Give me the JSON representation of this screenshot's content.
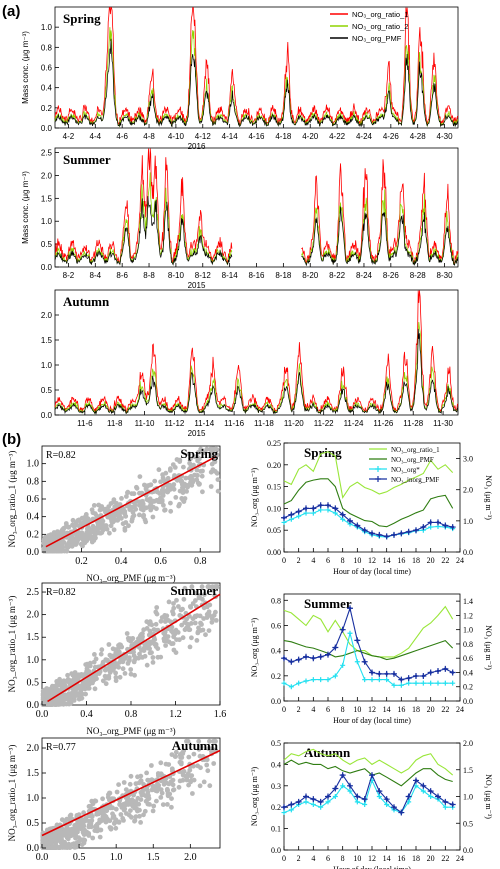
{
  "panel_a_label": "(a)",
  "panel_b_label": "(b)",
  "colors": {
    "ratio1": "#ff0000",
    "ratio2": "#8fd400",
    "pmf": "#000000",
    "scatter": "#b8b8b8",
    "fit": "#e00000",
    "d_ratio1": "#99e639",
    "d_pmf": "#2f7d12",
    "d_star": "#22e0f0",
    "d_inorg": "#1830a0"
  },
  "chart_data": [
    {
      "type": "line",
      "id": "ts_spring",
      "title": "Spring",
      "year": "2016",
      "ylabel": "Mass conc. (μg m⁻³)",
      "ylim": [
        0,
        1.2
      ],
      "yticks": [
        0.0,
        0.2,
        0.4,
        0.6,
        0.8,
        1.0
      ],
      "xticks": [
        "4-2",
        "4-4",
        "4-6",
        "4-8",
        "4-10",
        "4-12",
        "4-14",
        "4-16",
        "4-18",
        "4-20",
        "4-22",
        "4-24",
        "4-26",
        "4-28",
        "4-30"
      ],
      "x_days": [
        1,
        31
      ],
      "baseline": 0.15,
      "peaks": [
        [
          5.2,
          1.1
        ],
        [
          4.9,
          0.6
        ],
        [
          8.2,
          0.4
        ],
        [
          11.2,
          0.75
        ],
        [
          11.4,
          0.65
        ],
        [
          12.3,
          0.45
        ],
        [
          14.2,
          0.35
        ],
        [
          18.3,
          0.55
        ],
        [
          25.8,
          0.5
        ],
        [
          27.2,
          0.98
        ],
        [
          28.2,
          0.85
        ],
        [
          29.2,
          0.55
        ]
      ],
      "legend": [
        "NO₃_org_ratio_1",
        "NO₃_org_ratio_2",
        "NO₃_org_PMF"
      ]
    },
    {
      "type": "line",
      "id": "ts_summer",
      "title": "Summer",
      "year": "2015",
      "ylabel": "Mass conc. (μg m⁻³)",
      "ylim": [
        0,
        2.6
      ],
      "yticks": [
        0.0,
        0.5,
        1.0,
        1.5,
        2.0,
        2.5
      ],
      "xticks": [
        "8-2",
        "8-4",
        "8-6",
        "8-8",
        "8-10",
        "8-12",
        "8-14",
        "8-16",
        "8-18",
        "8-20",
        "8-22",
        "8-24",
        "8-26",
        "8-28",
        "8-30"
      ],
      "x_days": [
        1,
        31
      ],
      "baseline": 0.4,
      "gap": [
        14.2,
        19.3
      ],
      "peaks": [
        [
          6.3,
          1.1
        ],
        [
          7.5,
          1.8
        ],
        [
          8.0,
          2.45
        ],
        [
          8.5,
          2.0
        ],
        [
          9.3,
          1.6
        ],
        [
          10.5,
          1.3
        ],
        [
          11.8,
          1.0
        ],
        [
          20.5,
          1.6
        ],
        [
          22.3,
          1.7
        ],
        [
          24.1,
          1.75
        ],
        [
          25.5,
          1.95
        ],
        [
          26.8,
          1.9
        ],
        [
          28.5,
          1.5
        ],
        [
          30.2,
          1.0
        ]
      ],
      "legend": []
    },
    {
      "type": "line",
      "id": "ts_autumn",
      "title": "Autumn",
      "year": "2015",
      "ylabel": "",
      "ylim": [
        0,
        2.5
      ],
      "yticks": [
        0.0,
        0.5,
        1.0,
        1.5,
        2.0
      ],
      "xticks": [
        "11-6",
        "11-8",
        "11-10",
        "11-12",
        "11-14",
        "11-16",
        "11-18",
        "11-20",
        "11-22",
        "11-24",
        "11-26",
        "11-28",
        "11-30"
      ],
      "x_days": [
        4,
        31
      ],
      "baseline": 0.25,
      "peaks": [
        [
          9.8,
          0.8
        ],
        [
          10.6,
          1.15
        ],
        [
          13.2,
          1.05
        ],
        [
          14.6,
          0.85
        ],
        [
          16.3,
          0.6
        ],
        [
          19.5,
          0.8
        ],
        [
          20.4,
          1.05
        ],
        [
          23.3,
          0.6
        ],
        [
          26.3,
          0.75
        ],
        [
          27.5,
          1.0
        ],
        [
          28.4,
          2.35
        ],
        [
          29.3,
          1.0
        ],
        [
          30.4,
          0.6
        ]
      ],
      "legend": []
    },
    {
      "type": "scatter",
      "id": "sc_spring",
      "title": "Spring",
      "r_label": "R=0.82",
      "xlabel": "NO₃_org_PMF (μg m⁻³)",
      "ylabel": "NO₃_org_ratio_1 (μg m⁻³)",
      "xlim": [
        0,
        0.9
      ],
      "ylim": [
        0,
        1.2
      ],
      "xticks": [
        0.2,
        0.4,
        0.6,
        0.8
      ],
      "yticks": [
        0.0,
        0.2,
        0.4,
        0.6,
        0.8,
        1.0
      ],
      "fit": [
        [
          0.02,
          0.06
        ],
        [
          0.88,
          1.08
        ]
      ],
      "slope": 1.18,
      "noise": 0.15
    },
    {
      "type": "scatter",
      "id": "sc_summer",
      "title": "Summer",
      "r_label": "R=0.82",
      "xlabel": "NO₃_org_PMF (μg m⁻³)",
      "ylabel": "NO₃_org_ratio_1 (μg m⁻³)",
      "xlim": [
        0,
        1.6
      ],
      "ylim": [
        0,
        2.7
      ],
      "xticks": [
        0.0,
        0.4,
        0.8,
        1.2,
        1.6
      ],
      "yticks": [
        0.0,
        0.5,
        1.0,
        1.5,
        2.0,
        2.5
      ],
      "fit": [
        [
          0.05,
          0.08
        ],
        [
          1.6,
          2.45
        ]
      ],
      "slope": 1.5,
      "noise": 0.3
    },
    {
      "type": "scatter",
      "id": "sc_autumn",
      "title": "Autumn",
      "r_label": "R=0.77",
      "xlabel": "NO₃_org_PMF (μg m⁻³)",
      "ylabel": "NO₃_org_ratio_1 (μg m⁻³)",
      "xlim": [
        0,
        2.4
      ],
      "ylim": [
        0,
        2.2
      ],
      "xticks": [
        0.0,
        0.5,
        1.0,
        1.5,
        2.0
      ],
      "yticks": [
        0.0,
        0.5,
        1.0,
        1.5,
        2.0
      ],
      "fit": [
        [
          0.0,
          0.25
        ],
        [
          2.4,
          1.95
        ]
      ],
      "slope": 0.8,
      "noise": 0.3
    },
    {
      "type": "line",
      "id": "di_spring",
      "title": "Spring",
      "xlabel": "Hour of day (local time)",
      "ylabel_left": "NO₃_org (μg m⁻³)",
      "ylabel_right": "NO₃ (μg m⁻³)",
      "xticks": [
        0,
        2,
        4,
        6,
        8,
        10,
        12,
        14,
        16,
        18,
        20,
        22,
        24
      ],
      "ylim": [
        0,
        0.25
      ],
      "yticks": [
        0.0,
        0.05,
        0.1,
        0.15,
        0.2,
        0.25
      ],
      "ylim_right": [
        0,
        3.5
      ],
      "yticks_right": [
        0.0,
        1.0,
        2.0,
        3.0
      ],
      "series": [
        {
          "name": "NO₃_org_ratio_1",
          "axis": "left",
          "style": "d_ratio1",
          "values": [
            0.163,
            0.155,
            0.19,
            0.2,
            0.185,
            0.225,
            0.23,
            0.22,
            0.125,
            0.15,
            0.16,
            0.148,
            0.142,
            0.133,
            0.138,
            0.148,
            0.155,
            0.165,
            0.172,
            0.18,
            0.21,
            0.19,
            0.2,
            0.182
          ]
        },
        {
          "name": "NO₃_org_PMF",
          "axis": "left",
          "style": "d_pmf",
          "values": [
            0.11,
            0.118,
            0.142,
            0.16,
            0.165,
            0.168,
            0.168,
            0.15,
            0.1,
            0.088,
            0.08,
            0.072,
            0.07,
            0.06,
            0.058,
            0.066,
            0.075,
            0.082,
            0.09,
            0.096,
            0.122,
            0.127,
            0.13,
            0.1
          ]
        },
        {
          "name": "NO₃_org*",
          "axis": "right",
          "style": "d_star",
          "values": [
            0.95,
            1.05,
            1.15,
            1.25,
            1.25,
            1.35,
            1.35,
            1.25,
            1.05,
            0.9,
            0.8,
            0.65,
            0.55,
            0.5,
            0.48,
            0.55,
            0.58,
            0.62,
            0.68,
            0.7,
            0.8,
            0.82,
            0.8,
            0.75
          ]
        },
        {
          "name": "NO₃_inorg_PMF",
          "axis": "right",
          "style": "d_inorg",
          "values": [
            1.1,
            1.2,
            1.3,
            1.4,
            1.4,
            1.5,
            1.5,
            1.4,
            1.2,
            1.0,
            0.85,
            0.7,
            0.6,
            0.55,
            0.5,
            0.55,
            0.6,
            0.65,
            0.7,
            0.8,
            0.95,
            0.95,
            0.85,
            0.8
          ]
        }
      ]
    },
    {
      "type": "line",
      "id": "di_summer",
      "title": "Summer",
      "xlabel": "Hour of day (local time)",
      "ylabel_left": "NO₃_org (μg m⁻³)",
      "ylabel_right": "NO₃ (μg m⁻³)",
      "xticks": [
        0,
        2,
        4,
        6,
        8,
        10,
        12,
        14,
        16,
        18,
        20,
        22,
        24
      ],
      "ylim": [
        0,
        0.85
      ],
      "yticks": [
        0.0,
        0.2,
        0.4,
        0.6,
        0.8
      ],
      "ylim_right": [
        0,
        1.5
      ],
      "yticks_right": [
        0.0,
        0.2,
        0.4,
        0.6,
        0.8,
        1.0,
        1.2,
        1.4
      ],
      "series": [
        {
          "name": "NO₃_org_ratio_1",
          "axis": "left",
          "style": "d_ratio1",
          "values": [
            0.72,
            0.7,
            0.65,
            0.6,
            0.68,
            0.65,
            0.55,
            0.64,
            0.55,
            0.45,
            0.4,
            0.4,
            0.36,
            0.35,
            0.35,
            0.35,
            0.38,
            0.42,
            0.5,
            0.58,
            0.62,
            0.68,
            0.75,
            0.65
          ]
        },
        {
          "name": "NO₃_org_PMF",
          "axis": "left",
          "style": "d_pmf",
          "values": [
            0.48,
            0.47,
            0.45,
            0.43,
            0.42,
            0.4,
            0.38,
            0.35,
            0.36,
            0.38,
            0.4,
            0.38,
            0.36,
            0.35,
            0.33,
            0.34,
            0.36,
            0.38,
            0.4,
            0.42,
            0.44,
            0.46,
            0.48,
            0.42
          ]
        },
        {
          "name": "NO₃_org*",
          "axis": "right",
          "style": "d_star",
          "values": [
            0.25,
            0.2,
            0.25,
            0.28,
            0.3,
            0.3,
            0.3,
            0.35,
            0.5,
            0.95,
            0.55,
            0.3,
            0.3,
            0.3,
            0.3,
            0.22,
            0.22,
            0.25,
            0.25,
            0.25,
            0.25,
            0.25,
            0.25,
            0.25
          ]
        },
        {
          "name": "NO₃_inorg_PMF",
          "axis": "right",
          "style": "d_inorg",
          "values": [
            0.6,
            0.55,
            0.58,
            0.62,
            0.6,
            0.62,
            0.65,
            0.75,
            1.0,
            1.3,
            0.85,
            0.55,
            0.4,
            0.38,
            0.38,
            0.38,
            0.3,
            0.32,
            0.35,
            0.35,
            0.4,
            0.42,
            0.45,
            0.4
          ]
        }
      ]
    },
    {
      "type": "line",
      "id": "di_autumn",
      "title": "Autumn",
      "xlabel": "Hour of day (local time)",
      "ylabel_left": "NO₃_org (μg m⁻³)",
      "ylabel_right": "NO₃ (μg m⁻³)",
      "xticks": [
        0,
        2,
        4,
        6,
        8,
        10,
        12,
        14,
        16,
        18,
        20,
        22,
        24
      ],
      "ylim": [
        0,
        0.5
      ],
      "yticks": [
        0.0,
        0.1,
        0.2,
        0.3,
        0.4,
        0.5
      ],
      "ylim_right": [
        0,
        2.0
      ],
      "yticks_right": [
        0.0,
        0.5,
        1.0,
        1.5,
        2.0
      ],
      "series": [
        {
          "name": "NO₃_org_ratio_1",
          "axis": "left",
          "style": "d_ratio1",
          "values": [
            0.42,
            0.45,
            0.44,
            0.46,
            0.47,
            0.45,
            0.44,
            0.45,
            0.42,
            0.4,
            0.42,
            0.43,
            0.4,
            0.42,
            0.4,
            0.38,
            0.36,
            0.38,
            0.42,
            0.44,
            0.45,
            0.4,
            0.38,
            0.35
          ]
        },
        {
          "name": "NO₃_org_PMF",
          "axis": "left",
          "style": "d_pmf",
          "values": [
            0.4,
            0.42,
            0.4,
            0.41,
            0.4,
            0.4,
            0.38,
            0.39,
            0.37,
            0.36,
            0.37,
            0.38,
            0.35,
            0.36,
            0.34,
            0.32,
            0.3,
            0.33,
            0.36,
            0.38,
            0.38,
            0.35,
            0.33,
            0.32
          ]
        },
        {
          "name": "NO₃_org*",
          "axis": "right",
          "style": "d_star",
          "values": [
            0.7,
            0.75,
            0.85,
            0.9,
            0.85,
            0.8,
            0.9,
            1.0,
            1.2,
            1.1,
            0.9,
            0.85,
            1.3,
            1.0,
            0.85,
            0.75,
            0.7,
            0.9,
            1.2,
            1.1,
            1.0,
            0.95,
            0.8,
            0.8
          ]
        },
        {
          "name": "NO₃_inorg_PMF",
          "axis": "right",
          "style": "d_inorg",
          "values": [
            0.8,
            0.85,
            0.9,
            1.0,
            0.95,
            0.9,
            1.0,
            1.15,
            1.4,
            1.2,
            1.0,
            0.95,
            1.4,
            1.1,
            0.95,
            0.8,
            0.7,
            1.0,
            1.3,
            1.2,
            1.1,
            1.0,
            0.9,
            0.85
          ]
        }
      ]
    }
  ]
}
